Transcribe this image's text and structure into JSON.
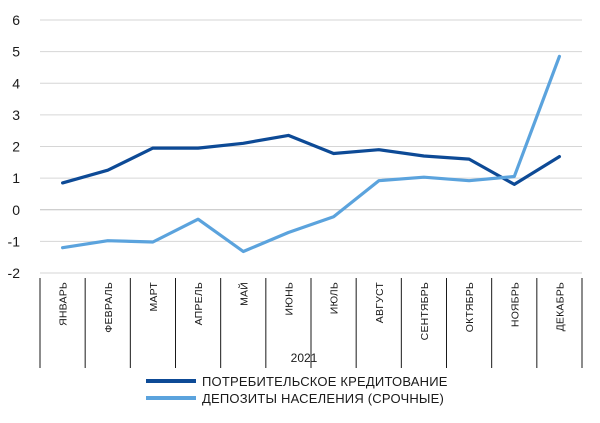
{
  "chart_data": {
    "type": "line",
    "categories": [
      "ЯНВАРЬ",
      "ФЕВРАЛЬ",
      "МАРТ",
      "АПРЕЛЬ",
      "МАЙ",
      "ИЮНЬ",
      "ИЮЛЬ",
      "АВГУСТ",
      "СЕНТЯБРЬ",
      "ОКТЯБРЬ",
      "НОЯБРЬ",
      "ДЕКАБРЬ"
    ],
    "year_label": "2021",
    "ylim": [
      -2,
      6
    ],
    "yticks": [
      -2,
      -1,
      0,
      1,
      2,
      3,
      4,
      5,
      6
    ],
    "ytick_labels": [
      "-2",
      "-1",
      "0",
      "1",
      "2",
      "3",
      "4",
      "5",
      "6"
    ],
    "grid": "horizontal",
    "legend_position": "bottom",
    "series": [
      {
        "name": "ПОТРЕБИТЕЛЬСКОЕ КРЕДИТОВАНИЕ",
        "color": "#0d4a96",
        "values": [
          0.85,
          1.25,
          1.95,
          1.95,
          2.1,
          2.35,
          1.78,
          1.9,
          1.7,
          1.6,
          0.8,
          1.68
        ]
      },
      {
        "name": "ДЕПОЗИТЫ НАСЕЛЕНИЯ (СРОЧНЫЕ)",
        "color": "#5ba3dd",
        "values": [
          -1.2,
          -0.98,
          -1.02,
          -0.3,
          -1.32,
          -0.72,
          -0.22,
          0.92,
          1.03,
          0.92,
          1.05,
          4.85
        ]
      }
    ]
  }
}
